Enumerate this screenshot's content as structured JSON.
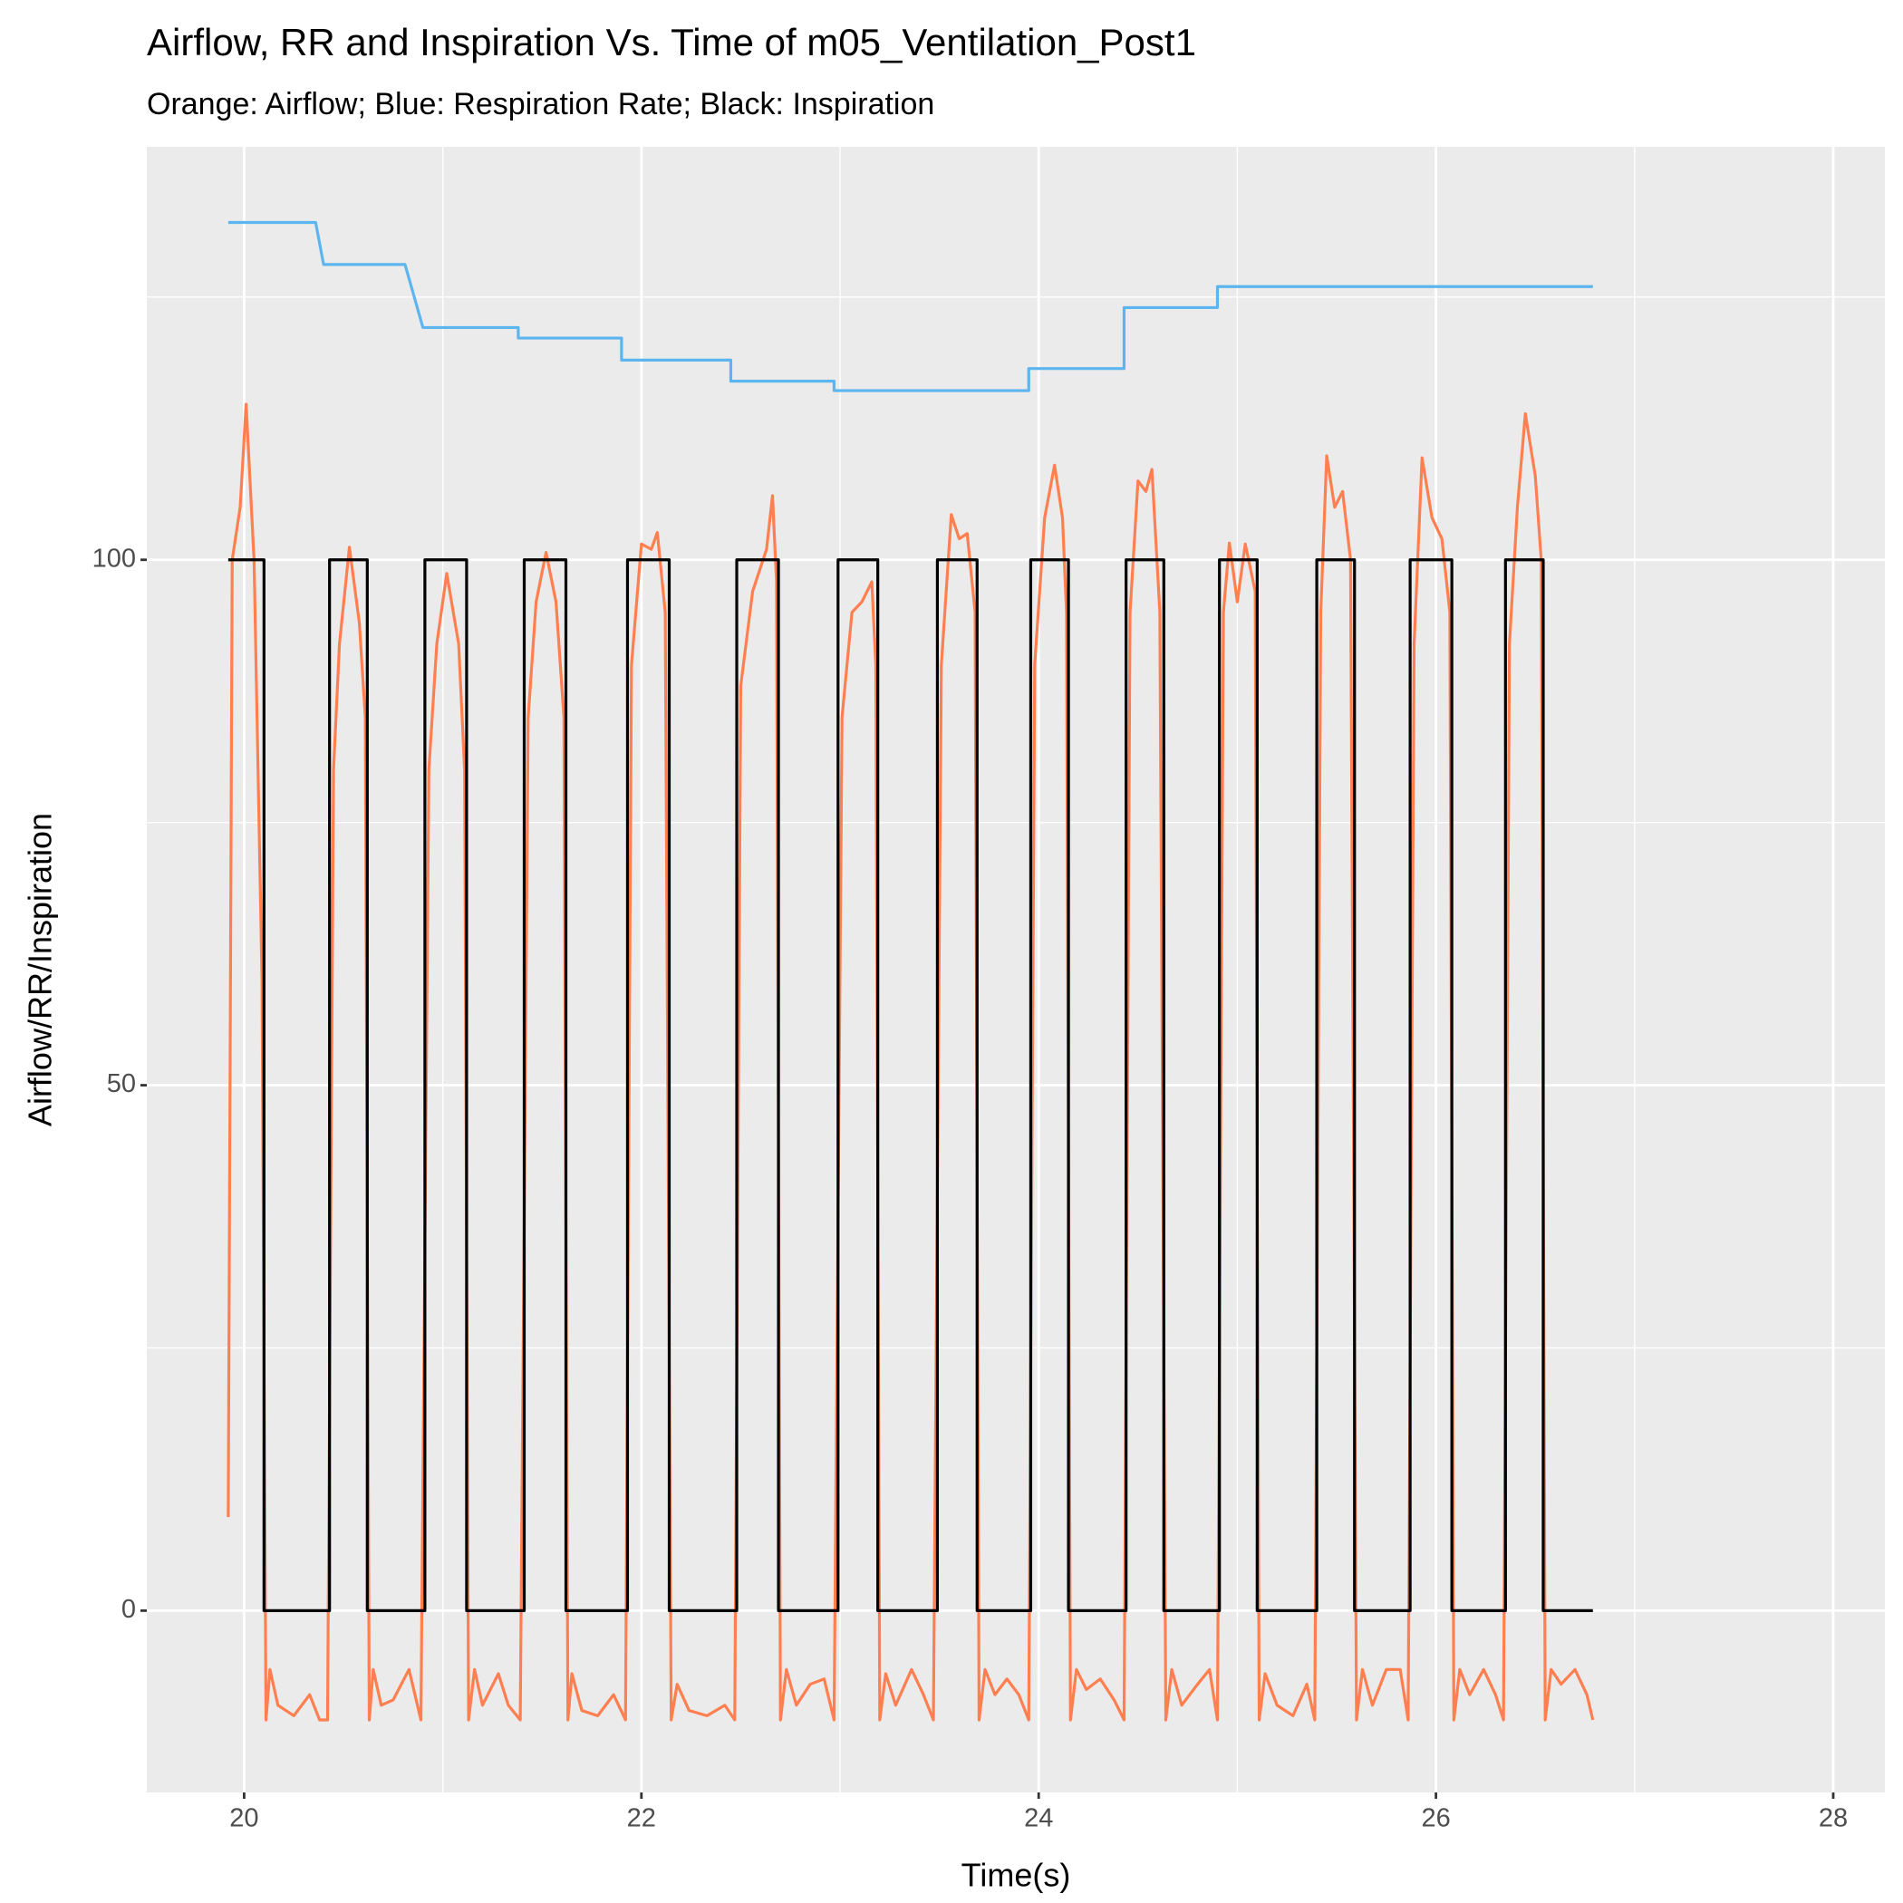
{
  "chart_data": {
    "type": "line",
    "title": "Airflow, RR and Inspiration Vs. Time  of  m05_Ventilation_Post1",
    "subtitle": "Orange: Airflow; Blue: Respiration Rate; Black: Inspiration",
    "x_label": "Time(s)",
    "y_label": "Airflow/RR/Inspiration",
    "xlim": [
      19.51,
      28.26
    ],
    "ylim": [
      -17.3,
      139.3
    ],
    "xticks": [
      20,
      22,
      24,
      26,
      28
    ],
    "yticks": [
      0,
      50,
      100
    ],
    "x_minor_ticks": [
      21,
      23,
      25,
      27
    ],
    "y_minor_ticks": [
      25,
      75,
      125
    ],
    "grid": true,
    "panel_color": "#ebebeb",
    "series": [
      {
        "color": "#ff7f50",
        "x": [
          19.92,
          19.94,
          19.98,
          20.01,
          20.05,
          20.09,
          20.11,
          20.13,
          20.17,
          20.25,
          20.33,
          20.38,
          20.42,
          20.45,
          20.48,
          20.53,
          20.58,
          20.61,
          20.63,
          20.65,
          20.69,
          20.75,
          20.83,
          20.89,
          20.93,
          20.97,
          21.02,
          21.08,
          21.11,
          21.13,
          21.16,
          21.2,
          21.28,
          21.33,
          21.39,
          21.43,
          21.47,
          21.52,
          21.57,
          21.61,
          21.63,
          21.65,
          21.7,
          21.78,
          21.86,
          21.92,
          21.95,
          22.0,
          22.05,
          22.08,
          22.12,
          22.15,
          22.18,
          22.24,
          22.33,
          22.42,
          22.47,
          22.5,
          22.56,
          22.63,
          22.66,
          22.68,
          22.7,
          22.73,
          22.78,
          22.85,
          22.92,
          22.97,
          23.01,
          23.06,
          23.11,
          23.16,
          23.18,
          23.2,
          23.23,
          23.28,
          23.36,
          23.42,
          23.47,
          23.51,
          23.56,
          23.6,
          23.64,
          23.68,
          23.7,
          23.73,
          23.78,
          23.84,
          23.9,
          23.95,
          23.98,
          24.03,
          24.08,
          24.12,
          24.14,
          24.16,
          24.19,
          24.24,
          24.31,
          24.38,
          24.43,
          24.46,
          24.5,
          24.54,
          24.57,
          24.61,
          24.64,
          24.67,
          24.72,
          24.8,
          24.86,
          24.9,
          24.93,
          24.96,
          25.0,
          25.04,
          25.09,
          25.11,
          25.14,
          25.2,
          25.28,
          25.35,
          25.39,
          25.42,
          25.45,
          25.49,
          25.53,
          25.57,
          25.6,
          25.63,
          25.68,
          25.75,
          25.82,
          25.86,
          25.89,
          25.93,
          25.98,
          26.03,
          26.07,
          26.09,
          26.12,
          26.17,
          26.24,
          26.3,
          26.34,
          26.37,
          26.41,
          26.45,
          26.5,
          26.53,
          26.55,
          26.58,
          26.63,
          26.7,
          26.76,
          26.79
        ],
        "values": [
          8.9,
          100,
          105,
          114.8,
          100,
          60,
          -10.4,
          -5.6,
          -9,
          -10,
          -8,
          -10.4,
          -10.4,
          80,
          92,
          101.2,
          94,
          85,
          -10.4,
          -5.6,
          -9,
          -8.5,
          -5.6,
          -10.4,
          80,
          92,
          98.7,
          92,
          80,
          -10.4,
          -5.6,
          -9,
          -6,
          -9,
          -10.4,
          85,
          96,
          100.7,
          96,
          85,
          -10.4,
          -6,
          -9.5,
          -10,
          -8,
          -10.4,
          90,
          101.5,
          101,
          102.6,
          95,
          -10.4,
          -7,
          -9.5,
          -10,
          -9,
          -10.4,
          88,
          97,
          101,
          106.1,
          98,
          -10.4,
          -5.6,
          -9,
          -7,
          -6.5,
          -10.4,
          85,
          95,
          96,
          97.9,
          90,
          -10.4,
          -6,
          -9,
          -5.6,
          -8,
          -10.4,
          90,
          104.3,
          102,
          102.5,
          95,
          -10.4,
          -5.6,
          -8,
          -6.5,
          -8,
          -10.4,
          90,
          104,
          109,
          104,
          95,
          -10.4,
          -5.6,
          -7.5,
          -6.5,
          -8.5,
          -10.4,
          95,
          107.5,
          106.5,
          108.6,
          95,
          -10.4,
          -5.6,
          -9,
          -7,
          -5.6,
          -10.4,
          95,
          101.6,
          96,
          101.5,
          97,
          -10.4,
          -6,
          -9,
          -10,
          -7,
          -10.4,
          95,
          109.9,
          105,
          106.5,
          100,
          -10.4,
          -5.6,
          -9,
          -5.6,
          -5.6,
          -10.4,
          92,
          109.7,
          104,
          102,
          95,
          -10.4,
          -5.6,
          -8,
          -5.6,
          -8,
          -10.4,
          92,
          105,
          113.9,
          108,
          100,
          -10.4,
          -5.6,
          -7,
          -5.6,
          -8,
          -10.4
        ]
      },
      {
        "color": "#5db5ef",
        "x": [
          19.92,
          20.36,
          20.4,
          20.81,
          20.9,
          21.38,
          21.38,
          21.9,
          21.9,
          22.45,
          22.45,
          22.97,
          22.97,
          23.95,
          23.95,
          24.43,
          24.43,
          24.9,
          24.9,
          26.79
        ],
        "values": [
          132.1,
          132.1,
          128.1,
          128.1,
          122.1,
          122.1,
          121.1,
          121.1,
          119.0,
          119.0,
          117.0,
          117.0,
          116.1,
          116.1,
          118.2,
          118.2,
          124.0,
          124.0,
          126.0,
          126.0
        ]
      },
      {
        "color": "#000000",
        "x": [
          19.92,
          20.1,
          20.1,
          20.43,
          20.43,
          20.62,
          20.62,
          20.91,
          20.91,
          21.12,
          21.12,
          21.41,
          21.41,
          21.62,
          21.62,
          21.93,
          21.93,
          22.14,
          22.14,
          22.48,
          22.48,
          22.69,
          22.69,
          22.99,
          22.99,
          23.19,
          23.19,
          23.49,
          23.49,
          23.69,
          23.69,
          23.96,
          23.96,
          24.15,
          24.15,
          24.44,
          24.44,
          24.63,
          24.63,
          24.91,
          24.91,
          25.1,
          25.1,
          25.4,
          25.4,
          25.59,
          25.59,
          25.87,
          25.87,
          26.08,
          26.08,
          26.35,
          26.35,
          26.54,
          26.54,
          26.79
        ],
        "values": [
          100,
          100,
          0,
          0,
          100,
          100,
          0,
          0,
          100,
          100,
          0,
          0,
          100,
          100,
          0,
          0,
          100,
          100,
          0,
          0,
          100,
          100,
          0,
          0,
          100,
          100,
          0,
          0,
          100,
          100,
          0,
          0,
          100,
          100,
          0,
          0,
          100,
          100,
          0,
          0,
          100,
          100,
          0,
          0,
          100,
          100,
          0,
          0,
          100,
          100,
          0,
          0,
          100,
          100,
          0,
          0
        ]
      }
    ]
  }
}
